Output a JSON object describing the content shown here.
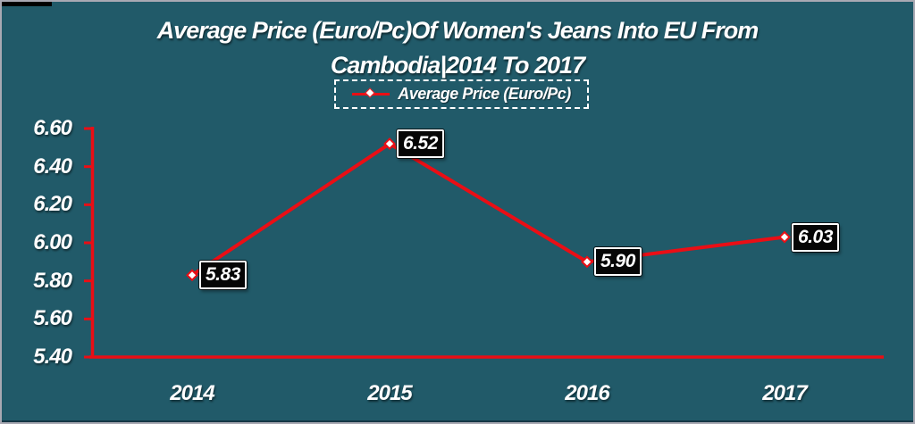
{
  "window": {
    "frame_border_color": "#a9a9b3",
    "top_left_notch_color": "#000000",
    "background_color": "#215a69"
  },
  "chart_data": {
    "type": "line",
    "title": "Average Price (Euro/Pc)Of Women's Jeans Into EU From Cambodia|2014 To 2017",
    "title_lines": [
      "Average Price (Euro/Pc)Of Women's Jeans Into EU From",
      "Cambodia|2014 To 2017"
    ],
    "legend": {
      "label": "Average Price (Euro/Pc)",
      "position": "top-center",
      "border_style": "dashed",
      "marker": "diamond-on-line"
    },
    "categories": [
      "2014",
      "2015",
      "2016",
      "2017"
    ],
    "series": [
      {
        "name": "Average Price (Euro/Pc)",
        "values": [
          5.83,
          6.52,
          5.9,
          6.03
        ]
      }
    ],
    "data_labels": [
      "5.83",
      "6.52",
      "5.90",
      "6.03"
    ],
    "xlabel": "",
    "ylabel": "",
    "ylim": [
      5.4,
      6.6
    ],
    "y_tick_step": 0.2,
    "y_tick_labels": [
      "6.60",
      "6.40",
      "6.20",
      "6.00",
      "5.80",
      "5.60",
      "5.40"
    ],
    "grid": false,
    "marker": "diamond",
    "colors": {
      "background": "#215a69",
      "line": "#ea0e15",
      "axis": "#ea0e15",
      "tick": "#ea0e15",
      "text": "#ffffff",
      "data_label_bg": "#060606",
      "data_label_border": "#ffffff",
      "marker_fill": "#ffffff",
      "marker_stroke": "#ea0e15"
    }
  }
}
